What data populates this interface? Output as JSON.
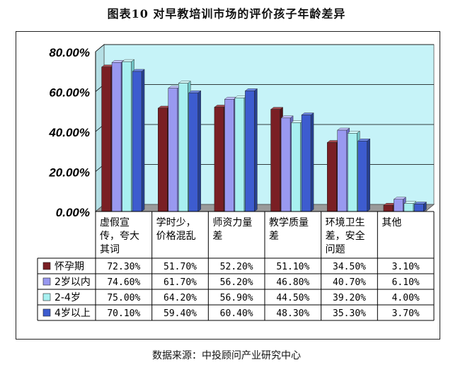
{
  "title": "图表10   对早教培训市场的评价孩子年龄差异",
  "source": "数据来源：中投顾问产业研究中心",
  "chart_data": {
    "type": "bar",
    "title": "图表10   对早教培训市场的评价孩子年龄差异",
    "categories": [
      "虚假宣传，夸大其词",
      "学时少，价格混乱",
      "师资力量差",
      "教学质量差",
      "环境卫生差，安全问题",
      "其他"
    ],
    "category_lines": [
      [
        "虚假宣",
        "传，夸大",
        "其词"
      ],
      [
        "学时少，",
        "价格混乱"
      ],
      [
        "师资力量",
        "差"
      ],
      [
        "教学质量",
        "差"
      ],
      [
        "环境卫生",
        "差，安全",
        "问题"
      ],
      [
        "其他"
      ]
    ],
    "series": [
      {
        "name": "怀孕期",
        "values": [
          72.3,
          51.7,
          52.2,
          51.1,
          34.5,
          3.1
        ],
        "labels": [
          "72.30%",
          "51.70%",
          "52.20%",
          "51.10%",
          "34.50%",
          "3.10%"
        ]
      },
      {
        "name": "2岁以内",
        "values": [
          74.6,
          61.7,
          56.2,
          46.8,
          40.7,
          6.1
        ],
        "labels": [
          "74.60%",
          "61.70%",
          "56.20%",
          "46.80%",
          "40.70%",
          "6.10%"
        ]
      },
      {
        "name": "2-4岁",
        "values": [
          75.0,
          64.2,
          56.9,
          44.5,
          39.2,
          4.0
        ],
        "labels": [
          "75.00%",
          "64.20%",
          "56.90%",
          "44.50%",
          "39.20%",
          "4.00%"
        ]
      },
      {
        "name": "4岁以上",
        "values": [
          70.1,
          59.4,
          60.4,
          48.3,
          35.3,
          3.7
        ],
        "labels": [
          "70.10%",
          "59.40%",
          "60.40%",
          "48.30%",
          "35.30%",
          "3.70%"
        ]
      }
    ],
    "ylim": [
      0,
      80
    ],
    "yticks": [
      "0.00%",
      "20.00%",
      "40.00%",
      "60.00%",
      "80.00%"
    ],
    "grid": true,
    "legend": "data-table-left",
    "colors": {
      "series": [
        "#7a1f24",
        "#9999f0",
        "#a8f0f0",
        "#3d5ccf"
      ],
      "series_side": [
        "#4e1216",
        "#6a6ac0",
        "#6fc2c2",
        "#27408f"
      ],
      "series_top": [
        "#a3474c",
        "#c2c2ff",
        "#d6ffff",
        "#6e88e6"
      ],
      "plot_back": "#c6f3f8",
      "floor": "#9a9a9a",
      "grid": "#000000"
    }
  }
}
